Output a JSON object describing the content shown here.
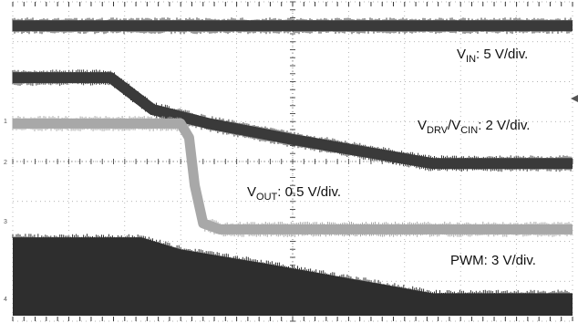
{
  "chart_data": {
    "type": "line",
    "title": "",
    "xlabel": "",
    "ylabel": "",
    "grid": true,
    "grid_divisions": {
      "x": 10,
      "y": 8
    },
    "y_axis_range_div": [
      -4,
      4
    ],
    "x_axis_range_div": [
      0,
      10
    ],
    "channel_markers": [
      "1",
      "2",
      "3",
      "4"
    ],
    "colors": {
      "dark_trace": "#3a3a3a",
      "light_trace": "#a8a8a8",
      "pwm_fill": "#2e2e2e",
      "grid": "#9a9a9a",
      "text": "#111111"
    },
    "annotations": [
      {
        "main": "V",
        "sub": "IN",
        "rest": ": 5 V/div."
      },
      {
        "main": "V",
        "sub": "DRV",
        "mid": "/V",
        "sub2": "CIN",
        "rest": ": 2 V/div."
      },
      {
        "main": "V",
        "sub": "OUT",
        "rest": ": 0.5 V/div."
      },
      {
        "main": "PWM: 3 V/div."
      }
    ],
    "series": [
      {
        "kind": "band",
        "color": "#3a3a3a",
        "points": [
          [
            0,
            3.4
          ],
          [
            10,
            3.4
          ]
        ]
      },
      {
        "kind": "band",
        "color": "#3a3a3a",
        "points": [
          [
            0,
            2.1
          ],
          [
            1.75,
            2.1
          ],
          [
            2.5,
            1.3
          ],
          [
            3.5,
            0.95
          ],
          [
            5.0,
            0.55
          ],
          [
            7.5,
            -0.05
          ],
          [
            10,
            -0.05
          ]
        ]
      },
      {
        "kind": "band",
        "color": "#a8a8a8",
        "points": [
          [
            0,
            0.95
          ],
          [
            3.0,
            0.95
          ],
          [
            3.15,
            0.6
          ],
          [
            3.25,
            -0.6
          ],
          [
            3.4,
            -1.55
          ],
          [
            3.7,
            -1.7
          ],
          [
            10,
            -1.7
          ]
        ]
      },
      {
        "kind": "fill",
        "color": "#2e2e2e",
        "points": [
          [
            0,
            -1.9
          ],
          [
            2.3,
            -1.9
          ],
          [
            3.0,
            -2.2
          ],
          [
            4.5,
            -2.55
          ],
          [
            6.5,
            -3.05
          ],
          [
            7.5,
            -3.3
          ],
          [
            10,
            -3.3
          ]
        ]
      }
    ]
  }
}
